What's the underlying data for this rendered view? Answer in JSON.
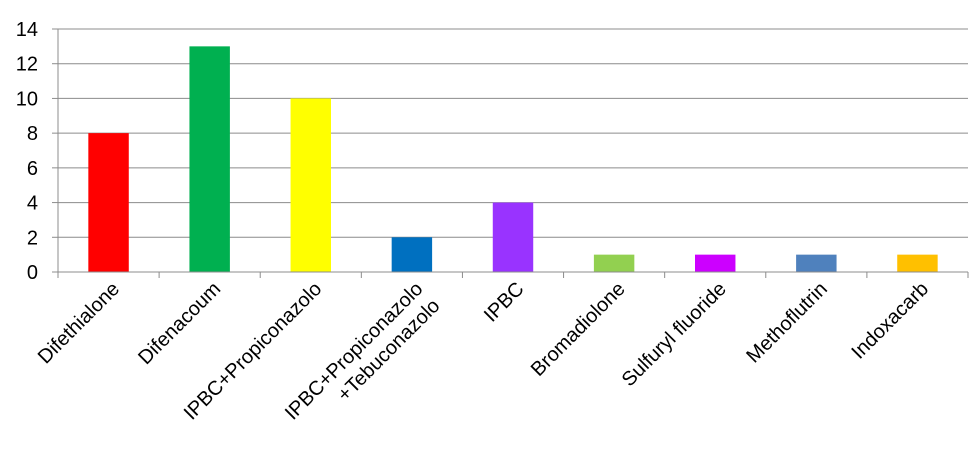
{
  "chart_data": {
    "type": "bar",
    "title": "",
    "xlabel": "",
    "ylabel": "",
    "ylim": [
      0,
      14
    ],
    "yticks": [
      0,
      2,
      4,
      6,
      8,
      10,
      12,
      14
    ],
    "grid": true,
    "legend": "none",
    "categories": [
      [
        "Difethialone"
      ],
      [
        "Difenacoum"
      ],
      [
        "IPBC+Propiconazolo"
      ],
      [
        "IPBC+Propiconazolo",
        "+Tebuconazolo"
      ],
      [
        "IPBC"
      ],
      [
        "Bromadiolone"
      ],
      [
        "Sulfuryl fluoride"
      ],
      [
        "Methoflutrin"
      ],
      [
        "Indoxacarb"
      ]
    ],
    "values": [
      8,
      13,
      10,
      2,
      4,
      1,
      1,
      1,
      1
    ],
    "colors": [
      "#ff0000",
      "#00b050",
      "#ffff00",
      "#0070c0",
      "#9933ff",
      "#92d050",
      "#cc00ff",
      "#4f81bd",
      "#ffc000"
    ]
  }
}
